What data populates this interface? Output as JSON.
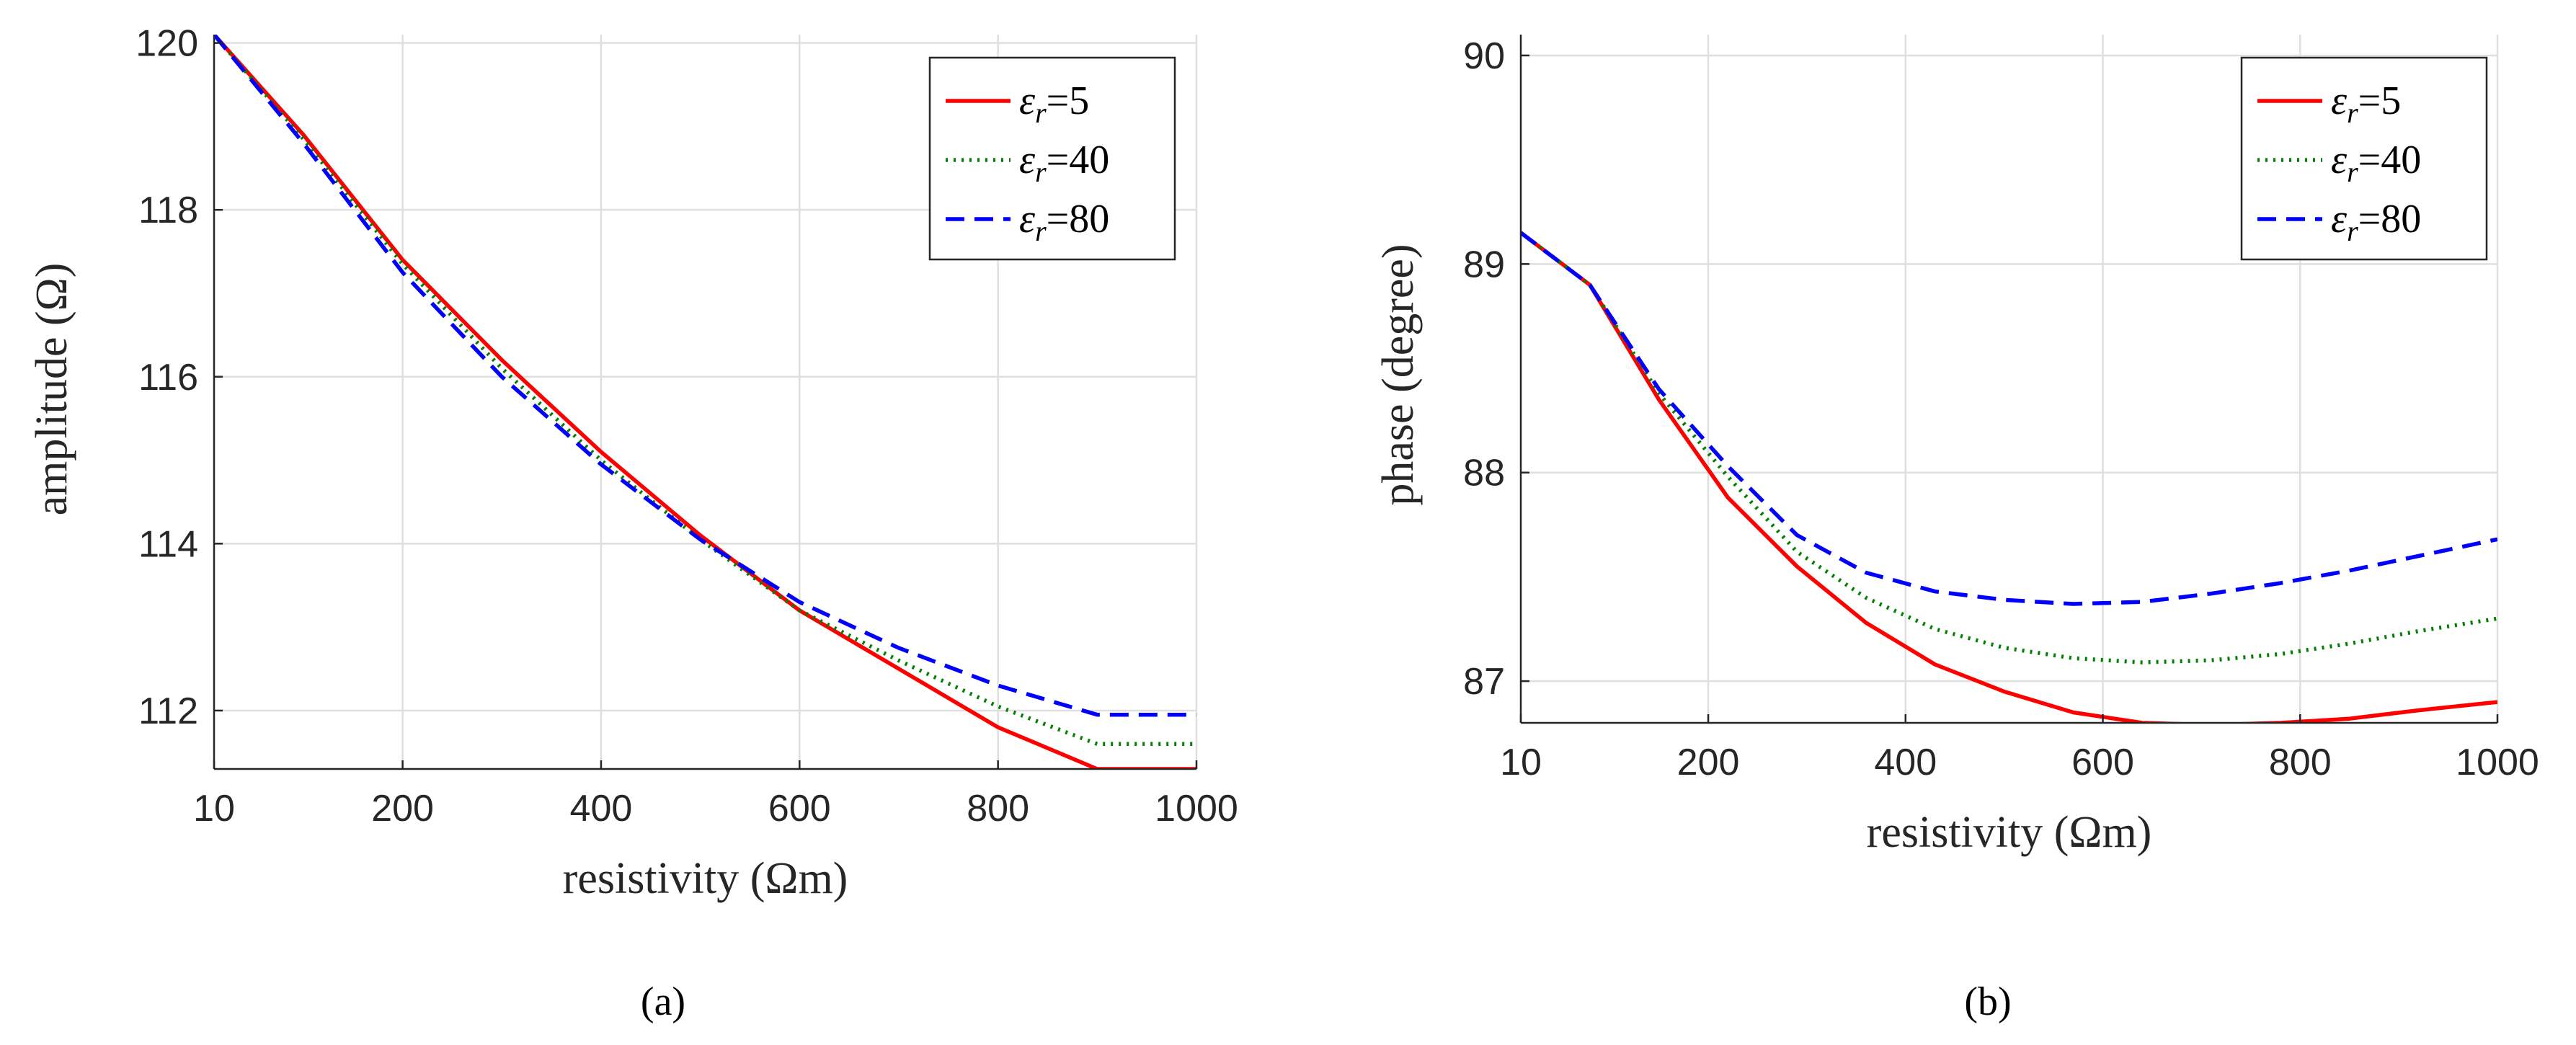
{
  "chart_data": [
    {
      "type": "line",
      "panel_label": "(a)",
      "xlabel": "resistivity (Ωm)",
      "ylabel": "amplitude (Ω)",
      "xlim": [
        10,
        1000
      ],
      "ylim": [
        111.3,
        120.1
      ],
      "xticks": [
        10,
        200,
        400,
        600,
        800,
        1000
      ],
      "yticks": [
        112,
        114,
        116,
        118,
        120
      ],
      "grid": true,
      "legend_position": "top-right",
      "x": [
        10,
        100,
        200,
        300,
        400,
        500,
        600,
        700,
        800,
        900,
        1000
      ],
      "series": [
        {
          "name": "εr=5",
          "label_sym": "ε",
          "label_sub": "r",
          "label_val": "=5",
          "color": "#ff0000",
          "dash": "solid",
          "values": [
            120.1,
            118.9,
            117.4,
            116.2,
            115.1,
            114.1,
            113.2,
            112.5,
            111.8,
            111.3,
            111.3
          ]
        },
        {
          "name": "εr=40",
          "label_sym": "ε",
          "label_sub": "r",
          "label_val": "=40",
          "color": "#008000",
          "dash": "dotted",
          "values": [
            120.1,
            118.85,
            117.35,
            116.1,
            115.0,
            114.05,
            113.2,
            112.6,
            112.05,
            111.6,
            111.6
          ]
        },
        {
          "name": "εr=80",
          "label_sym": "ε",
          "label_sub": "r",
          "label_val": "=80",
          "color": "#0000ff",
          "dash": "dashed",
          "values": [
            120.1,
            118.8,
            117.25,
            116.0,
            114.95,
            114.05,
            113.3,
            112.75,
            112.3,
            111.95,
            111.95
          ]
        }
      ]
    },
    {
      "type": "line",
      "panel_label": "(b)",
      "xlabel": "resistivity (Ωm)",
      "ylabel": "phase (degree)",
      "xlim": [
        10,
        1000
      ],
      "ylim": [
        86.8,
        90.1
      ],
      "xticks": [
        10,
        200,
        400,
        600,
        800,
        1000
      ],
      "yticks": [
        87,
        88,
        89,
        90
      ],
      "grid": true,
      "legend_position": "top-right",
      "x": [
        10,
        80,
        150,
        220,
        290,
        360,
        430,
        500,
        570,
        640,
        710,
        780,
        850,
        920,
        1000
      ],
      "series": [
        {
          "name": "εr=5",
          "label_sym": "ε",
          "label_sub": "r",
          "label_val": "=5",
          "color": "#ff0000",
          "dash": "solid",
          "values": [
            89.15,
            88.9,
            88.35,
            87.88,
            87.55,
            87.28,
            87.08,
            86.95,
            86.85,
            86.8,
            86.79,
            86.8,
            86.82,
            86.86,
            86.9
          ]
        },
        {
          "name": "εr=40",
          "label_sym": "ε",
          "label_sub": "r",
          "label_val": "=40",
          "color": "#008000",
          "dash": "dotted",
          "values": [
            89.15,
            88.9,
            88.38,
            87.98,
            87.62,
            87.4,
            87.25,
            87.16,
            87.11,
            87.09,
            87.1,
            87.13,
            87.18,
            87.24,
            87.3
          ]
        },
        {
          "name": "εr=80",
          "label_sym": "ε",
          "label_sub": "r",
          "label_val": "=80",
          "color": "#0000ff",
          "dash": "dashed",
          "values": [
            89.15,
            88.9,
            88.4,
            88.03,
            87.7,
            87.52,
            87.43,
            87.39,
            87.37,
            87.38,
            87.42,
            87.47,
            87.53,
            87.6,
            87.68
          ]
        }
      ]
    }
  ]
}
